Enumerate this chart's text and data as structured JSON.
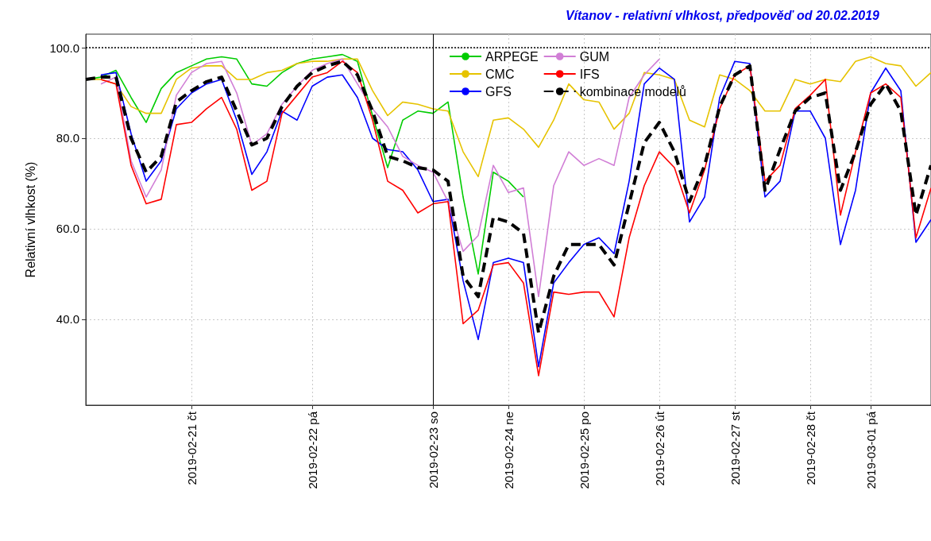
{
  "chart_data": {
    "type": "line",
    "title": "Vítanov - relativní vlhkost, předpověď od 20.02.2019",
    "ylabel": "Relativní vlhkost (%)",
    "categories": [
      null,
      null,
      null,
      null,
      null,
      null,
      null,
      "2019-02-21 čt",
      null,
      null,
      null,
      null,
      null,
      null,
      null,
      "2019-02-22 pá",
      null,
      null,
      null,
      null,
      null,
      null,
      null,
      "2019-02-23 so",
      null,
      null,
      null,
      null,
      "2019-02-24 ne",
      null,
      null,
      null,
      null,
      "2019-02-25 po",
      null,
      null,
      null,
      null,
      "2019-02-26 út",
      null,
      null,
      null,
      null,
      "2019-02-27 st",
      null,
      null,
      null,
      null,
      "2019-02-28 čt",
      null,
      null,
      null,
      "2019-03-01 pá",
      null,
      null,
      null,
      null
    ],
    "series": [
      {
        "name": "ARPEGE",
        "color": "#00cc00",
        "values": [
          93,
          93.5,
          95,
          89,
          83.5,
          91,
          94.5,
          96,
          97.5,
          98,
          97.5,
          92,
          91.5,
          94.5,
          96.5,
          97.5,
          98,
          98.5,
          97,
          85,
          73.5,
          84,
          86,
          85.5,
          88,
          67,
          50,
          72.5,
          70.5,
          67,
          null,
          null,
          null,
          null,
          null,
          null,
          null,
          null,
          null,
          null,
          null,
          null,
          null,
          null,
          null,
          null,
          null,
          null,
          null,
          null,
          null,
          null,
          null,
          null,
          null,
          null,
          null
        ]
      },
      {
        "name": "CMC",
        "color": "#e6c300",
        "values": [
          93,
          93,
          92,
          87,
          85.5,
          85.5,
          93,
          95.5,
          96,
          96,
          93,
          93,
          94.5,
          95,
          96.5,
          97,
          97,
          97.5,
          97.5,
          90.5,
          85,
          88,
          87.5,
          86.5,
          86,
          77,
          71.5,
          84,
          84.5,
          82,
          78,
          84,
          92,
          88.5,
          88,
          82,
          85.5,
          94.5,
          94,
          93,
          84,
          82.5,
          94,
          93,
          90.5,
          86,
          86,
          93,
          92,
          93,
          92.5,
          97,
          98,
          96.5,
          96,
          91.5,
          94.5
        ]
      },
      {
        "name": "GFS",
        "color": "#0000ff",
        "values": [
          null,
          94,
          94.5,
          81,
          70.5,
          75,
          86.5,
          90,
          92,
          93,
          84,
          72,
          77,
          86,
          84,
          91.5,
          93.5,
          94,
          89,
          80,
          77.5,
          77,
          73,
          66,
          66.5,
          48.5,
          35.5,
          52.5,
          53.5,
          52.5,
          29.5,
          48,
          52.5,
          56.5,
          58,
          54.5,
          70.5,
          92,
          95.5,
          93,
          61.5,
          67,
          89,
          97,
          96.5,
          67,
          70.5,
          86,
          86,
          80,
          56.5,
          68.5,
          90,
          95.5,
          90.5,
          57,
          62
        ]
      },
      {
        "name": "GUM",
        "color": "#d17fd6",
        "values": [
          null,
          92,
          93.5,
          75,
          67,
          73,
          89.5,
          94.5,
          96.5,
          97,
          90,
          78.5,
          81,
          87.5,
          91.5,
          95,
          96.5,
          97.5,
          92,
          86.5,
          82.5,
          76,
          74,
          72.5,
          66,
          55,
          58.5,
          74,
          68,
          69,
          45,
          69.5,
          77,
          74,
          75.5,
          74,
          89,
          94,
          97.5,
          null,
          null,
          null,
          null,
          null,
          null,
          null,
          null,
          null,
          null,
          null,
          null,
          null,
          null,
          null,
          null,
          null,
          null
        ]
      },
      {
        "name": "IFS",
        "color": "#ff0000",
        "values": [
          null,
          93,
          92,
          74,
          65.5,
          66.5,
          83,
          83.5,
          86.5,
          89,
          82,
          68.5,
          70.5,
          85.5,
          89.5,
          93.5,
          94.5,
          97,
          94.5,
          84,
          70.5,
          68.5,
          63.5,
          65.5,
          66,
          39,
          42,
          52,
          52.5,
          48,
          27.5,
          46,
          45.5,
          46,
          46,
          40.5,
          58,
          69.5,
          77,
          73.5,
          63.5,
          73,
          86.5,
          94,
          96,
          70.5,
          74,
          86.5,
          89.5,
          93,
          63,
          77,
          90,
          92,
          89,
          58,
          69
        ]
      },
      {
        "name": "kombinace modelů",
        "color": "#000000",
        "line_style": "dashed",
        "values": [
          93,
          93.5,
          93.5,
          80,
          72.5,
          76,
          88,
          90.5,
          92.5,
          93.5,
          86,
          78.5,
          80,
          87,
          91.5,
          94.5,
          96,
          97,
          94,
          86,
          76,
          75,
          73.5,
          73,
          70.5,
          49.5,
          45,
          62.5,
          61.5,
          59,
          37,
          49.5,
          56.5,
          56.5,
          56.5,
          52,
          65.5,
          79,
          83.5,
          77,
          66,
          74,
          87,
          94,
          96,
          68.5,
          77.5,
          86,
          89,
          90,
          68.5,
          77,
          87.5,
          92,
          86,
          63,
          74
        ]
      }
    ],
    "ylim": [
      21,
      103
    ],
    "yticks": [
      {
        "value": 40,
        "label": "40.0"
      },
      {
        "value": 60,
        "label": "60.0"
      },
      {
        "value": 80,
        "label": "80.0"
      },
      {
        "value": 100,
        "label": "100.0"
      }
    ],
    "grid": true,
    "legend": "top",
    "ref_lines": [
      {
        "axis": "y",
        "value": 100,
        "line_style": "dotted",
        "color": "#000000"
      },
      {
        "axis": "x",
        "value": "2019-02-23 so",
        "line_style": "solid",
        "color": "#000000"
      }
    ]
  }
}
